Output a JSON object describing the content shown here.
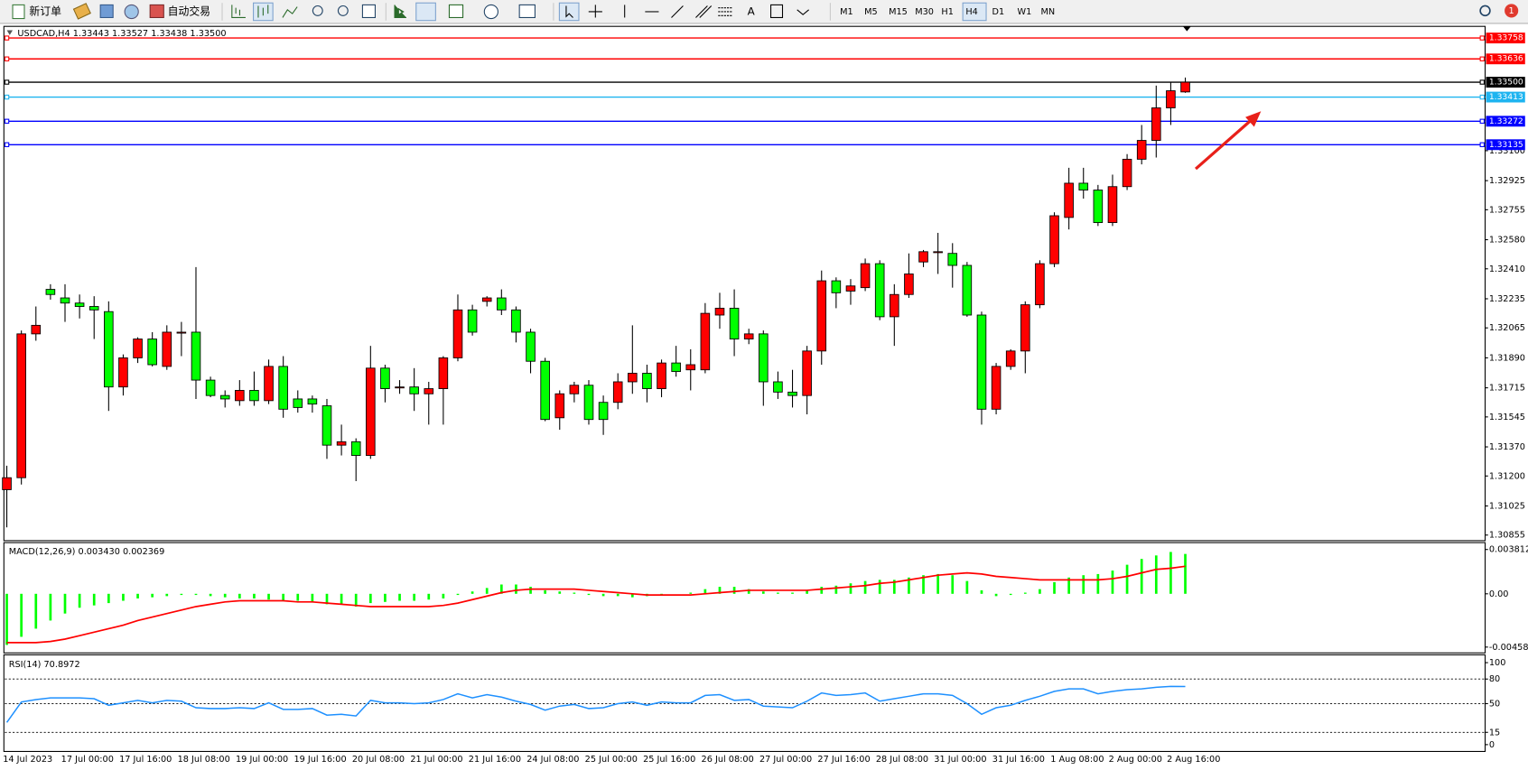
{
  "toolbar": {
    "new_order": "新订单",
    "auto_trading": "自动交易",
    "timeframes": [
      "M1",
      "M5",
      "M15",
      "M30",
      "H1",
      "H4",
      "D1",
      "W1",
      "MN"
    ],
    "active_timeframe": "H4",
    "notification_count": "1"
  },
  "chart_data": [
    {
      "type": "candlestick",
      "title": "USDCAD,H4  1.33443 1.33527 1.33438 1.33500",
      "categories": [
        "14 Jul 2023",
        null,
        null,
        null,
        "17 Jul 00:00",
        null,
        null,
        null,
        "17 Jul 16:00",
        null,
        null,
        null,
        "18 Jul 08:00",
        null,
        null,
        null,
        "19 Jul 00:00",
        null,
        null,
        null,
        "19 Jul 16:00",
        null,
        null,
        null,
        "20 Jul 08:00",
        null,
        null,
        null,
        "21 Jul 00:00",
        null,
        null,
        null,
        "21 Jul 16:00",
        null,
        null,
        null,
        "24 Jul 08:00",
        null,
        null,
        null,
        "25 Jul 00:00",
        null,
        null,
        null,
        "25 Jul 16:00",
        null,
        null,
        null,
        "26 Jul 08:00",
        null,
        null,
        null,
        "27 Jul 00:00",
        null,
        null,
        null,
        "27 Jul 16:00",
        null,
        null,
        null,
        "28 Jul 08:00",
        null,
        null,
        null,
        "31 Jul 00:00",
        null,
        null,
        null,
        "31 Jul 16:00",
        null,
        null,
        null,
        "1 Aug 08:00",
        null,
        null,
        null,
        "2 Aug 00:00",
        null,
        null,
        null,
        "2 Aug 16:00",
        null
      ],
      "open": [
        1.3112,
        1.3119,
        1.3203,
        1.3229,
        1.3224,
        1.3221,
        1.3219,
        1.3216,
        1.3172,
        1.3189,
        1.32,
        1.3184,
        1.3204,
        1.3204,
        1.3176,
        1.3167,
        1.3164,
        1.317,
        1.3164,
        1.3184,
        1.3165,
        1.3165,
        1.3161,
        1.3138,
        1.314,
        1.3132,
        1.3183,
        1.3172,
        1.3172,
        1.3168,
        1.3171,
        1.3189,
        1.3217,
        1.3222,
        1.3224,
        1.3217,
        1.3204,
        1.3187,
        1.3154,
        1.3168,
        1.3173,
        1.3163,
        1.3163,
        1.3175,
        1.318,
        1.3171,
        1.3186,
        1.3182,
        1.3182,
        1.3214,
        1.3218,
        1.32,
        1.3203,
        1.3175,
        1.3169,
        1.3167,
        1.3193,
        1.3234,
        1.3228,
        1.323,
        1.3244,
        1.3213,
        1.3226,
        1.3245,
        1.3251,
        1.325,
        1.3243,
        1.3214,
        1.3159,
        1.3184,
        1.3193,
        1.322,
        1.3244,
        1.3271,
        1.3291,
        1.3287,
        1.3268,
        1.3289,
        1.3305,
        1.3316,
        1.3335,
        1.33443
      ],
      "high": [
        1.3126,
        1.3205,
        1.3219,
        1.3232,
        1.3232,
        1.3226,
        1.3225,
        1.3222,
        1.3191,
        1.3201,
        1.3204,
        1.3208,
        1.321,
        1.3242,
        1.3178,
        1.317,
        1.3176,
        1.3181,
        1.3188,
        1.319,
        1.317,
        1.3167,
        1.3165,
        1.315,
        1.3142,
        1.3196,
        1.3185,
        1.3176,
        1.3183,
        1.3175,
        1.319,
        1.3226,
        1.322,
        1.3225,
        1.3229,
        1.3219,
        1.3206,
        1.3189,
        1.317,
        1.3175,
        1.3176,
        1.3167,
        1.318,
        1.3208,
        1.3185,
        1.3188,
        1.3196,
        1.3194,
        1.3221,
        1.3227,
        1.3229,
        1.3206,
        1.3205,
        1.3181,
        1.3182,
        1.3196,
        1.324,
        1.3236,
        1.3235,
        1.3247,
        1.3246,
        1.3232,
        1.325,
        1.3252,
        1.3262,
        1.3256,
        1.3245,
        1.3216,
        1.3186,
        1.3194,
        1.3222,
        1.3246,
        1.3274,
        1.33,
        1.33,
        1.329,
        1.3296,
        1.3308,
        1.3325,
        1.3348,
        1.335,
        1.33527
      ],
      "low": [
        1.309,
        1.3115,
        1.3199,
        1.3223,
        1.321,
        1.3212,
        1.32,
        1.3158,
        1.3167,
        1.3186,
        1.3184,
        1.3182,
        1.319,
        1.3165,
        1.3166,
        1.316,
        1.3161,
        1.3161,
        1.3162,
        1.3154,
        1.3157,
        1.3157,
        1.313,
        1.3132,
        1.3117,
        1.313,
        1.3163,
        1.3168,
        1.3158,
        1.315,
        1.315,
        1.3187,
        1.3202,
        1.3219,
        1.3214,
        1.3198,
        1.318,
        1.3152,
        1.3147,
        1.3163,
        1.315,
        1.3144,
        1.3159,
        1.3168,
        1.3163,
        1.3166,
        1.3178,
        1.317,
        1.318,
        1.3206,
        1.319,
        1.3197,
        1.3161,
        1.3165,
        1.316,
        1.3156,
        1.3185,
        1.3218,
        1.322,
        1.3228,
        1.3211,
        1.3196,
        1.3224,
        1.3242,
        1.3238,
        1.323,
        1.3213,
        1.315,
        1.3156,
        1.3182,
        1.318,
        1.3218,
        1.3242,
        1.3264,
        1.3282,
        1.3266,
        1.3266,
        1.3287,
        1.3302,
        1.3306,
        1.3325,
        1.33438
      ],
      "close": [
        1.3119,
        1.3203,
        1.3208,
        1.3226,
        1.3221,
        1.3219,
        1.3217,
        1.3172,
        1.3189,
        1.32,
        1.3185,
        1.3204,
        1.3204,
        1.3176,
        1.3167,
        1.3165,
        1.317,
        1.3164,
        1.3184,
        1.3159,
        1.316,
        1.3162,
        1.3138,
        1.314,
        1.3132,
        1.3183,
        1.3171,
        1.3172,
        1.3168,
        1.3171,
        1.3189,
        1.3217,
        1.3204,
        1.3224,
        1.3217,
        1.3204,
        1.3187,
        1.3153,
        1.3168,
        1.3173,
        1.3153,
        1.3153,
        1.3175,
        1.318,
        1.3171,
        1.3186,
        1.3181,
        1.3185,
        1.3215,
        1.3218,
        1.32,
        1.3203,
        1.3175,
        1.3169,
        1.3167,
        1.3193,
        1.3234,
        1.3227,
        1.3231,
        1.3244,
        1.3213,
        1.3226,
        1.3238,
        1.3251,
        1.3251,
        1.3243,
        1.3214,
        1.3159,
        1.3184,
        1.3193,
        1.322,
        1.3244,
        1.3272,
        1.3291,
        1.3287,
        1.3268,
        1.3289,
        1.3305,
        1.3316,
        1.3335,
        1.3345,
        1.335
      ],
      "up_color": "#ff0000",
      "down_color": "#00ff00",
      "ylim": [
        1.30828,
        1.33809
      ],
      "yticks": [
        {
          "value": 1.331,
          "label": "1.33100"
        },
        1.32925,
        1.32755,
        {
          "value": 1.3258,
          "label": "1.32580"
        },
        {
          "value": 1.3241,
          "label": "1.32410"
        },
        1.32235,
        1.32065,
        {
          "value": 1.3189,
          "label": "1.31890"
        },
        1.31715,
        1.31545,
        {
          "value": 1.3137,
          "label": "1.31370"
        },
        {
          "value": 1.312,
          "label": "1.31200"
        },
        1.31025,
        1.30855
      ],
      "levels": [
        {
          "value": 1.33758,
          "color": "#ff0000"
        },
        {
          "value": 1.33636,
          "color": "#ff0000"
        },
        {
          "value": 1.335,
          "label": "1.33500",
          "color": "#000000"
        },
        {
          "value": 1.33413,
          "color": "#1eb4f0"
        },
        {
          "value": 1.33272,
          "color": "#0000ff"
        },
        {
          "value": 1.33135,
          "color": "#0000ff"
        }
      ],
      "grid": false
    },
    {
      "type": "combo",
      "title": "MACD(12,26,9) 0.003430 0.002369",
      "series": [
        {
          "type": "bar",
          "color": "#00ff00",
          "values": [
            -0.0044,
            -0.0037,
            -0.003,
            -0.0023,
            -0.0017,
            -0.0012,
            -0.001,
            -0.0008,
            -0.0006,
            -0.0004,
            -0.0003,
            -0.0002,
            -0.0001,
            -0.0001,
            -0.0002,
            -0.0003,
            -0.0004,
            -0.0004,
            -0.0005,
            -0.0006,
            -0.0006,
            -0.0007,
            -0.0009,
            -0.0009,
            -0.0011,
            -0.0008,
            -0.0007,
            -0.0006,
            -0.0006,
            -0.0005,
            -0.0004,
            -0.0001,
            0.0002,
            0.0005,
            0.0008,
            0.0008,
            0.0006,
            0.0003,
            0.0002,
            0.0001,
            -0.0001,
            -0.0002,
            -0.0002,
            -0.0003,
            -0.0002,
            -0.0001,
            0.0,
            0.0001,
            0.0004,
            0.0006,
            0.0006,
            0.0004,
            0.0002,
            0.0001,
            0.0001,
            0.0003,
            0.0006,
            0.0007,
            0.0009,
            0.0011,
            0.0012,
            0.0012,
            0.0014,
            0.0016,
            0.0017,
            0.0016,
            0.0011,
            0.0003,
            -0.0002,
            -0.0001,
            0.0001,
            0.0004,
            0.001,
            0.0014,
            0.0016,
            0.0017,
            0.002,
            0.0025,
            0.003,
            0.0033,
            0.0036,
            0.00343
          ]
        },
        {
          "type": "line",
          "color": "#ff0000",
          "values": [
            -0.0042,
            -0.0042,
            -0.0042,
            -0.0041,
            -0.0039,
            -0.0036,
            -0.0033,
            -0.003,
            -0.0027,
            -0.0023,
            -0.002,
            -0.0017,
            -0.0014,
            -0.0011,
            -0.0009,
            -0.0007,
            -0.0006,
            -0.0006,
            -0.0006,
            -0.0006,
            -0.0007,
            -0.0007,
            -0.0008,
            -0.0009,
            -0.001,
            -0.0011,
            -0.0011,
            -0.0011,
            -0.0011,
            -0.0011,
            -0.001,
            -0.0008,
            -0.0005,
            -0.0002,
            0.0001,
            0.0003,
            0.0004,
            0.0004,
            0.0004,
            0.0004,
            0.0003,
            0.0002,
            0.0001,
            0.0,
            -0.0001,
            -0.0001,
            -0.0001,
            -0.0001,
            0.0,
            0.0001,
            0.0002,
            0.0003,
            0.0003,
            0.0003,
            0.0003,
            0.0003,
            0.0004,
            0.0005,
            0.0006,
            0.0007,
            0.0009,
            0.001,
            0.0012,
            0.0014,
            0.0016,
            0.0017,
            0.0018,
            0.0017,
            0.0015,
            0.0014,
            0.0013,
            0.0012,
            0.0012,
            0.0012,
            0.0012,
            0.0012,
            0.0013,
            0.0015,
            0.0018,
            0.0021,
            0.0022,
            0.002369
          ]
        }
      ],
      "ylim": [
        -0.005,
        0.00432
      ],
      "yticks": [
        0.003812,
        {
          "value": 0,
          "label": "0.00"
        },
        -0.004584
      ]
    },
    {
      "type": "line",
      "title": "RSI(14) 70.8972",
      "series": [
        {
          "color": "#1e90ff",
          "values": [
            27,
            52,
            55,
            57,
            57,
            57,
            56,
            48,
            51,
            54,
            51,
            54,
            53,
            45,
            44,
            44,
            45,
            44,
            51,
            43,
            43,
            44,
            36,
            37,
            35,
            54,
            51,
            51,
            50,
            51,
            55,
            62,
            57,
            61,
            58,
            53,
            49,
            42,
            47,
            49,
            44,
            45,
            50,
            52,
            48,
            52,
            51,
            51,
            60,
            61,
            54,
            55,
            47,
            46,
            45,
            53,
            63,
            60,
            61,
            63,
            53,
            56,
            59,
            62,
            62,
            60,
            50,
            37,
            45,
            48,
            54,
            59,
            65,
            68,
            68,
            62,
            65,
            67,
            68,
            70,
            71,
            70.8972
          ]
        }
      ],
      "ylim": [
        0,
        100
      ],
      "yticks": [
        100,
        80,
        50,
        15,
        0
      ],
      "levels": [
        80,
        50,
        15
      ]
    }
  ]
}
